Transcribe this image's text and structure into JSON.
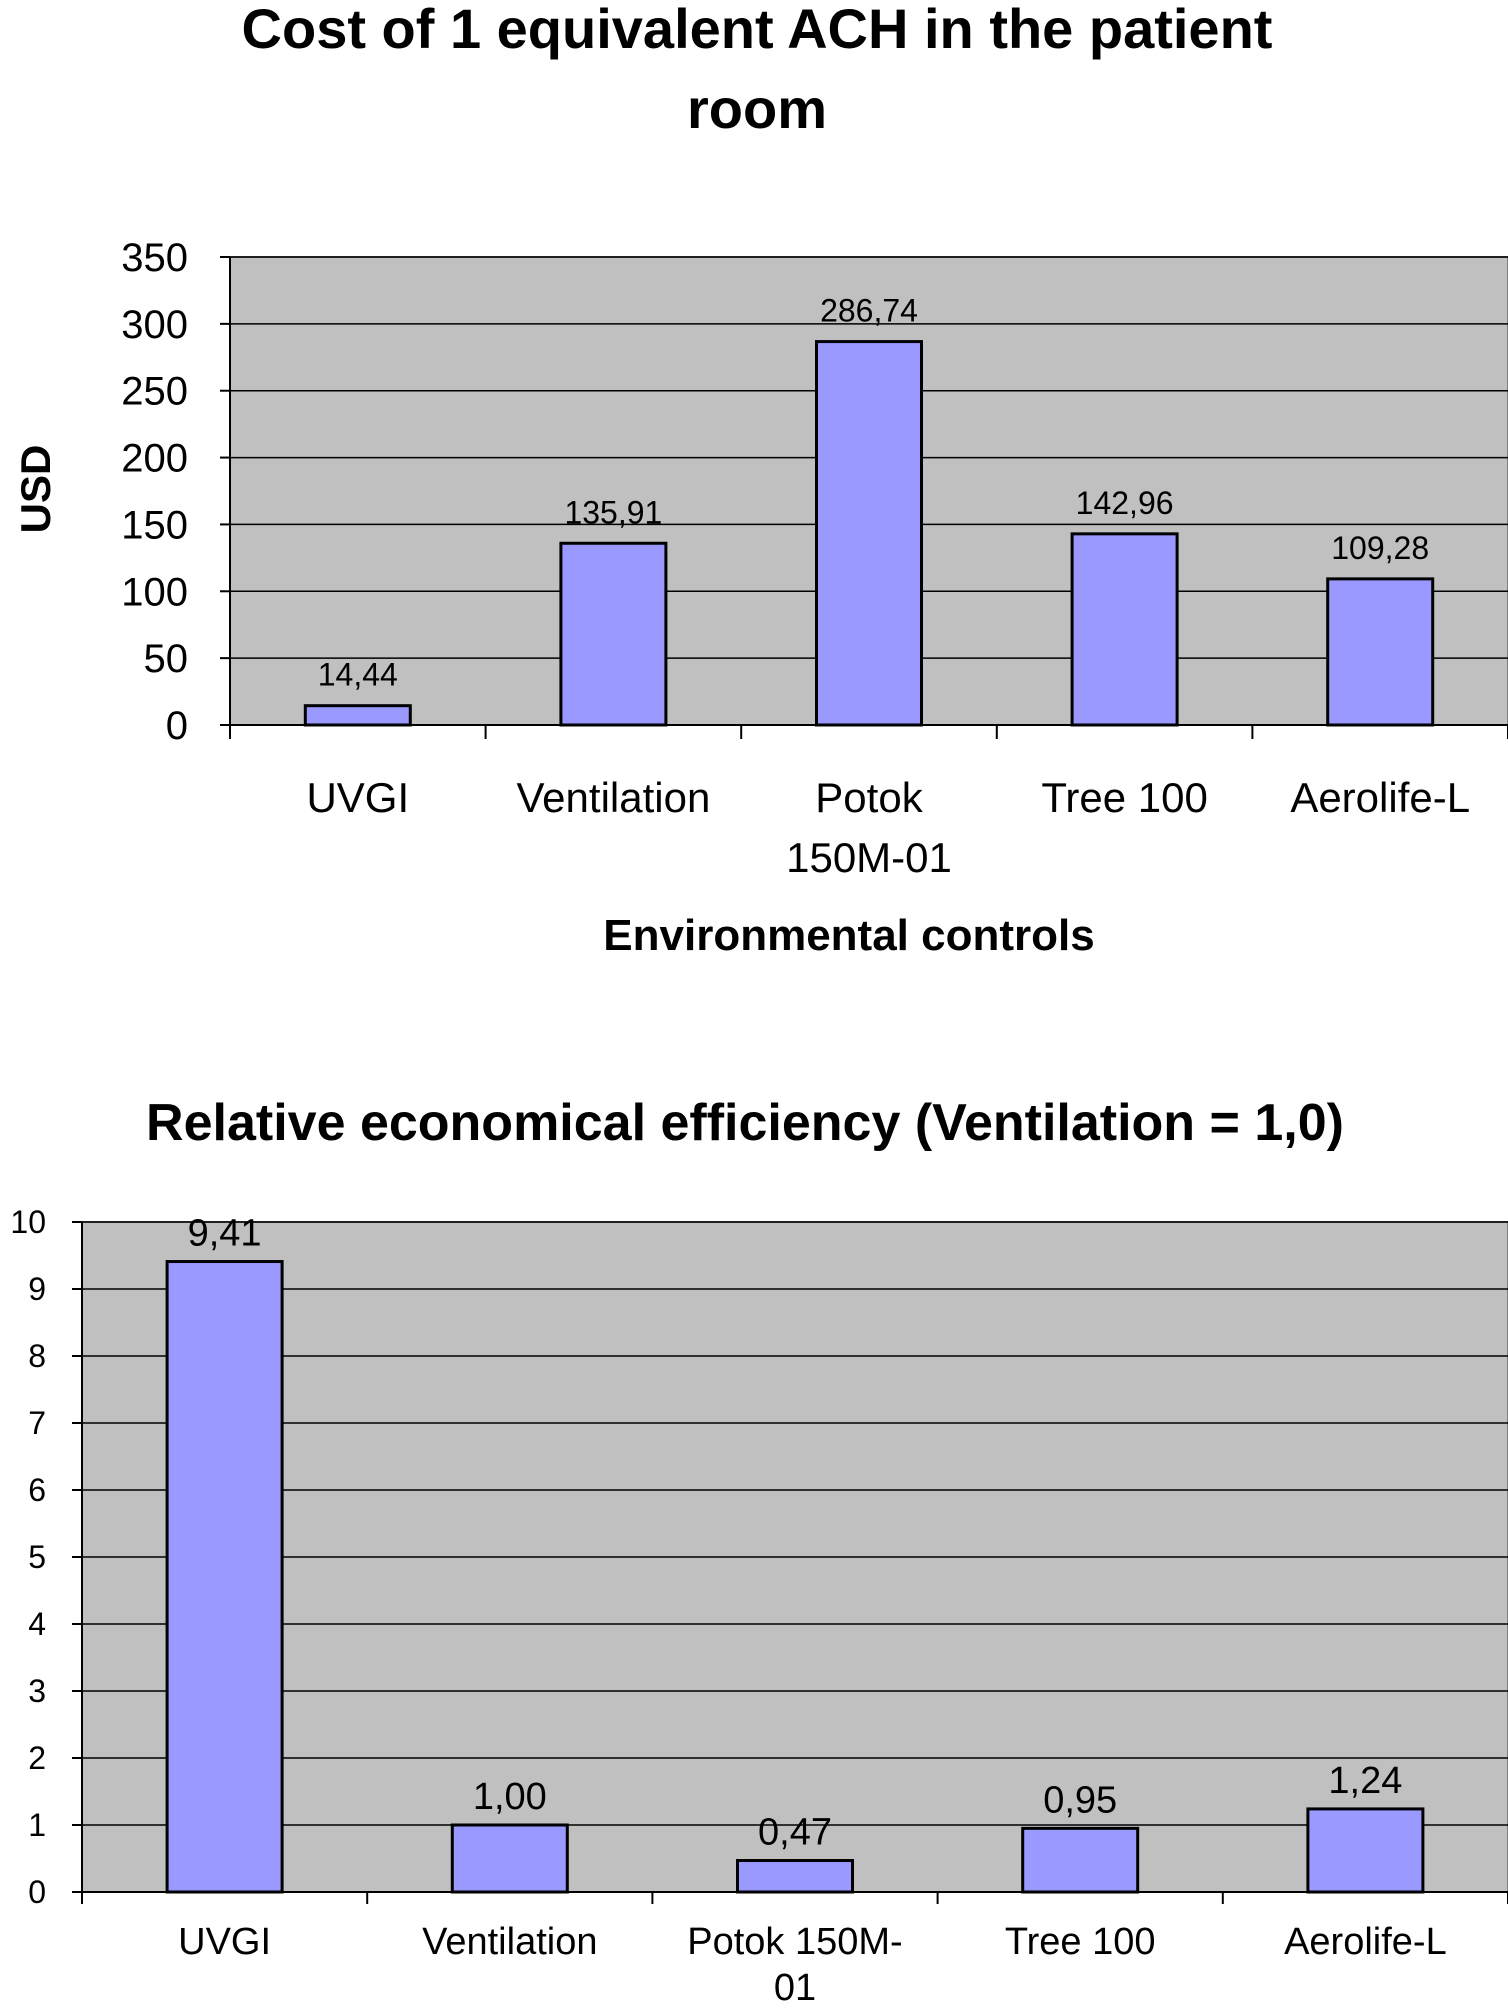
{
  "chart_data": [
    {
      "type": "bar",
      "title": "Cost of 1 equivalent ACH in the patient room",
      "title_lines": [
        "Cost of 1 equivalent ACH in the patient",
        "room"
      ],
      "xlabel": "Environmental controls",
      "ylabel": "USD",
      "categories": [
        "UVGI",
        "Ventilation",
        "Potok 150M-01",
        "Tree 100",
        "Aerolife-L"
      ],
      "category_lines": [
        [
          "UVGI"
        ],
        [
          "Ventilation"
        ],
        [
          "Potok",
          "150M-01"
        ],
        [
          "Tree 100"
        ],
        [
          "Aerolife-L"
        ]
      ],
      "values": [
        14.44,
        135.91,
        286.74,
        142.96,
        109.28
      ],
      "value_labels": [
        "14,44",
        "135,91",
        "286,74",
        "142,96",
        "109,28"
      ],
      "ylim": [
        0,
        350
      ],
      "yticks": [
        0,
        50,
        100,
        150,
        200,
        250,
        300,
        350
      ],
      "grid": true,
      "legend": "none",
      "bar_color": "#9999ff",
      "plot_bg": "#c0c0c0"
    },
    {
      "type": "bar",
      "title": "Relative economical efficiency (Ventilation = 1,0)",
      "title_lines": [
        "Relative economical efficiency (Ventilation = 1,0)"
      ],
      "xlabel": "",
      "ylabel": "",
      "categories": [
        "UVGI",
        "Ventilation",
        "Potok 150M-01",
        "Tree 100",
        "Aerolife-L"
      ],
      "category_lines": [
        [
          "UVGI"
        ],
        [
          "Ventilation"
        ],
        [
          "Potok 150M-",
          "01"
        ],
        [
          "Tree 100"
        ],
        [
          "Aerolife-L"
        ]
      ],
      "values": [
        9.41,
        1.0,
        0.47,
        0.95,
        1.24
      ],
      "value_labels": [
        "9,41",
        "1,00",
        "0,47",
        "0,95",
        "1,24"
      ],
      "ylim": [
        0,
        10
      ],
      "yticks": [
        0,
        1,
        2,
        3,
        4,
        5,
        6,
        7,
        8,
        9,
        10
      ],
      "grid": true,
      "legend": "none",
      "bar_color": "#9999ff",
      "plot_bg": "#c0c0c0"
    }
  ]
}
